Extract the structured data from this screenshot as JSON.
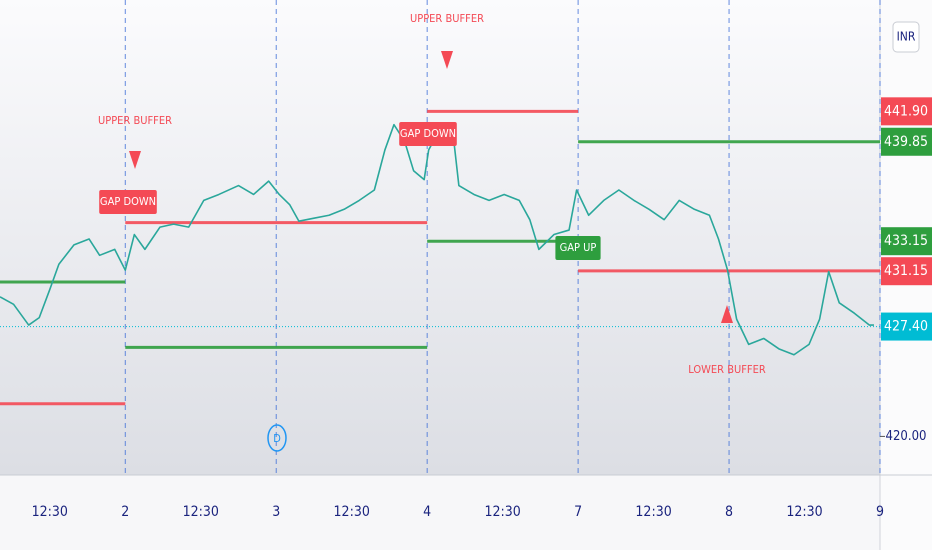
{
  "chart_data": {
    "type": "line",
    "currency": "INR",
    "x": [
      0.17,
      0.26,
      0.36,
      0.43,
      0.5,
      0.56,
      0.66,
      0.76,
      0.83,
      0.93,
      1.0,
      1.06,
      1.13,
      1.23,
      1.32,
      1.42,
      1.52,
      1.62,
      1.75,
      1.85,
      1.95,
      2.02,
      2.09,
      2.15,
      2.25,
      2.35,
      2.45,
      2.55,
      2.65,
      2.72,
      2.78,
      2.85,
      2.91,
      2.98,
      3.01,
      3.08,
      3.18,
      3.21,
      3.31,
      3.41,
      3.51,
      3.61,
      3.68,
      3.74,
      3.84,
      3.94,
      3.99,
      4.07,
      4.17,
      4.27,
      4.37,
      4.47,
      4.57,
      4.67,
      4.77,
      4.87,
      4.93,
      4.99,
      5.05,
      5.13,
      5.23,
      5.33,
      5.43,
      5.53,
      5.6,
      5.66,
      5.73,
      5.83,
      5.93,
      5.96
    ],
    "values": [
      429.4,
      428.9,
      427.5,
      428.0,
      429.9,
      431.6,
      432.9,
      433.3,
      432.2,
      432.6,
      431.2,
      433.6,
      432.6,
      434.1,
      434.3,
      434.1,
      435.9,
      436.3,
      436.9,
      436.3,
      437.2,
      436.3,
      435.6,
      434.5,
      434.7,
      434.9,
      435.3,
      435.9,
      436.6,
      439.3,
      441.0,
      439.9,
      437.9,
      437.3,
      439.3,
      440.6,
      439.6,
      436.9,
      436.3,
      435.9,
      436.3,
      435.9,
      434.6,
      432.6,
      433.6,
      433.9,
      436.6,
      434.9,
      435.9,
      436.6,
      435.9,
      435.3,
      434.6,
      435.9,
      435.3,
      434.9,
      433.3,
      431.2,
      427.9,
      426.2,
      426.6,
      425.9,
      425.5,
      426.2,
      427.9,
      431.1,
      429.0,
      428.3,
      427.5,
      427.5
    ],
    "color": "#2aa79b",
    "xlim": [
      0.17,
      6.0
    ],
    "ylim": [
      417.4,
      449.4
    ],
    "xticks": [
      {
        "value": 0.5,
        "label": "12:30"
      },
      {
        "value": 1,
        "label": "2"
      },
      {
        "value": 1.5,
        "label": "12:30"
      },
      {
        "value": 2,
        "label": "3"
      },
      {
        "value": 2.5,
        "label": "12:30"
      },
      {
        "value": 3,
        "label": "4"
      },
      {
        "value": 3.5,
        "label": "12:30"
      },
      {
        "value": 4,
        "label": "7"
      },
      {
        "value": 4.5,
        "label": "12:30"
      },
      {
        "value": 5,
        "label": "8"
      },
      {
        "value": 5.5,
        "label": "12:30"
      },
      {
        "value": 6,
        "label": "9"
      }
    ],
    "yticks": [
      {
        "value": 420,
        "label": "420.00"
      }
    ],
    "levels": [
      {
        "value": 430.4,
        "from": 0.17,
        "to": 1,
        "color": "#2e9e3e"
      },
      {
        "value": 422.2,
        "from": 0.17,
        "to": 1,
        "color": "#f44a55"
      },
      {
        "value": 434.4,
        "from": 1,
        "to": 3,
        "color": "#f44a55"
      },
      {
        "value": 426.0,
        "from": 1,
        "to": 3,
        "color": "#2e9e3e"
      },
      {
        "value": 441.9,
        "label": "441.90",
        "from": 3,
        "to": 4,
        "color": "#f44a55"
      },
      {
        "value": 433.15,
        "label": "433.15",
        "from": 3,
        "to": 4,
        "color": "#2e9e3e"
      },
      {
        "value": 439.85,
        "label": "439.85",
        "from": 4,
        "to": 6,
        "color": "#2e9e3e"
      },
      {
        "value": 431.15,
        "label": "431.15",
        "from": 4,
        "to": 6,
        "color": "#f44a55"
      }
    ],
    "last_price": {
      "value": 427.4,
      "label": "427.40",
      "color": "#00bcd4"
    },
    "annotations": [
      {
        "text": "UPPER BUFFER",
        "color": "#f44a55"
      },
      {
        "text": "GAP DOWN",
        "color": "#f44a55"
      },
      {
        "text": "UPPER BUFFER",
        "color": "#f44a55"
      },
      {
        "text": "GAP DOWN",
        "color": "#f44a55"
      },
      {
        "text": "GAP UP",
        "color": "#2e9e3e"
      },
      {
        "text": "LOWER BUFFER",
        "color": "#f44a55"
      }
    ],
    "marker": "D"
  }
}
